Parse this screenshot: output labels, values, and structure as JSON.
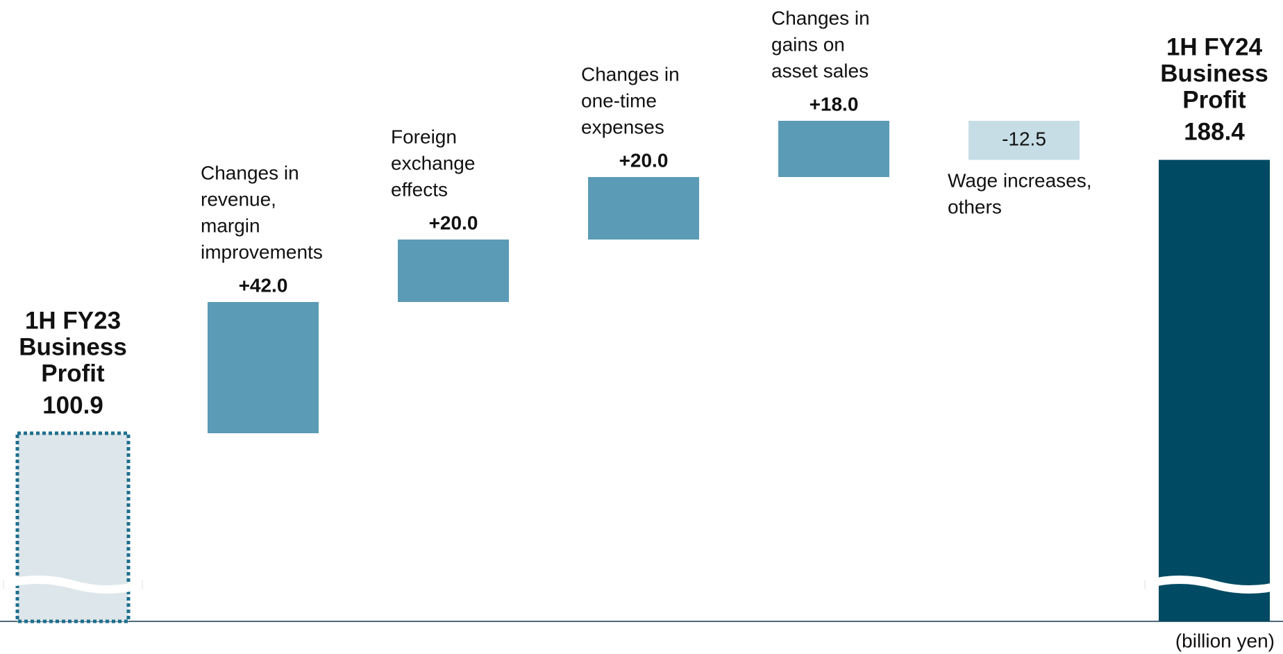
{
  "chart_data": {
    "type": "waterfall",
    "categories": [
      [
        "1H FY23",
        "Business",
        "Profit"
      ],
      [
        "Changes in",
        "revenue,",
        "margin",
        "improvements"
      ],
      [
        "Foreign",
        "exchange",
        "effects"
      ],
      [
        "Changes in",
        "one-time",
        "expenses"
      ],
      [
        "Changes in",
        "gains on",
        "asset sales"
      ],
      [
        "Wage increases,",
        "others"
      ],
      [
        "1H FY24",
        "Business",
        "Profit"
      ]
    ],
    "measure": [
      "total",
      "relative",
      "relative",
      "relative",
      "relative",
      "relative",
      "total"
    ],
    "values": [
      100.9,
      42.0,
      20.0,
      20.0,
      18.0,
      -12.5,
      188.4
    ],
    "value_labels": [
      "100.9",
      "+42.0",
      "+20.0",
      "+20.0",
      "+18.0",
      "-12.5",
      "188.4"
    ],
    "colors": [
      "#dde6ea",
      "#5b9bb6",
      "#5b9bb6",
      "#5b9bb6",
      "#5b9bb6",
      "#c6dde6",
      "#004a63"
    ],
    "unit_label": "(billion yen)"
  }
}
